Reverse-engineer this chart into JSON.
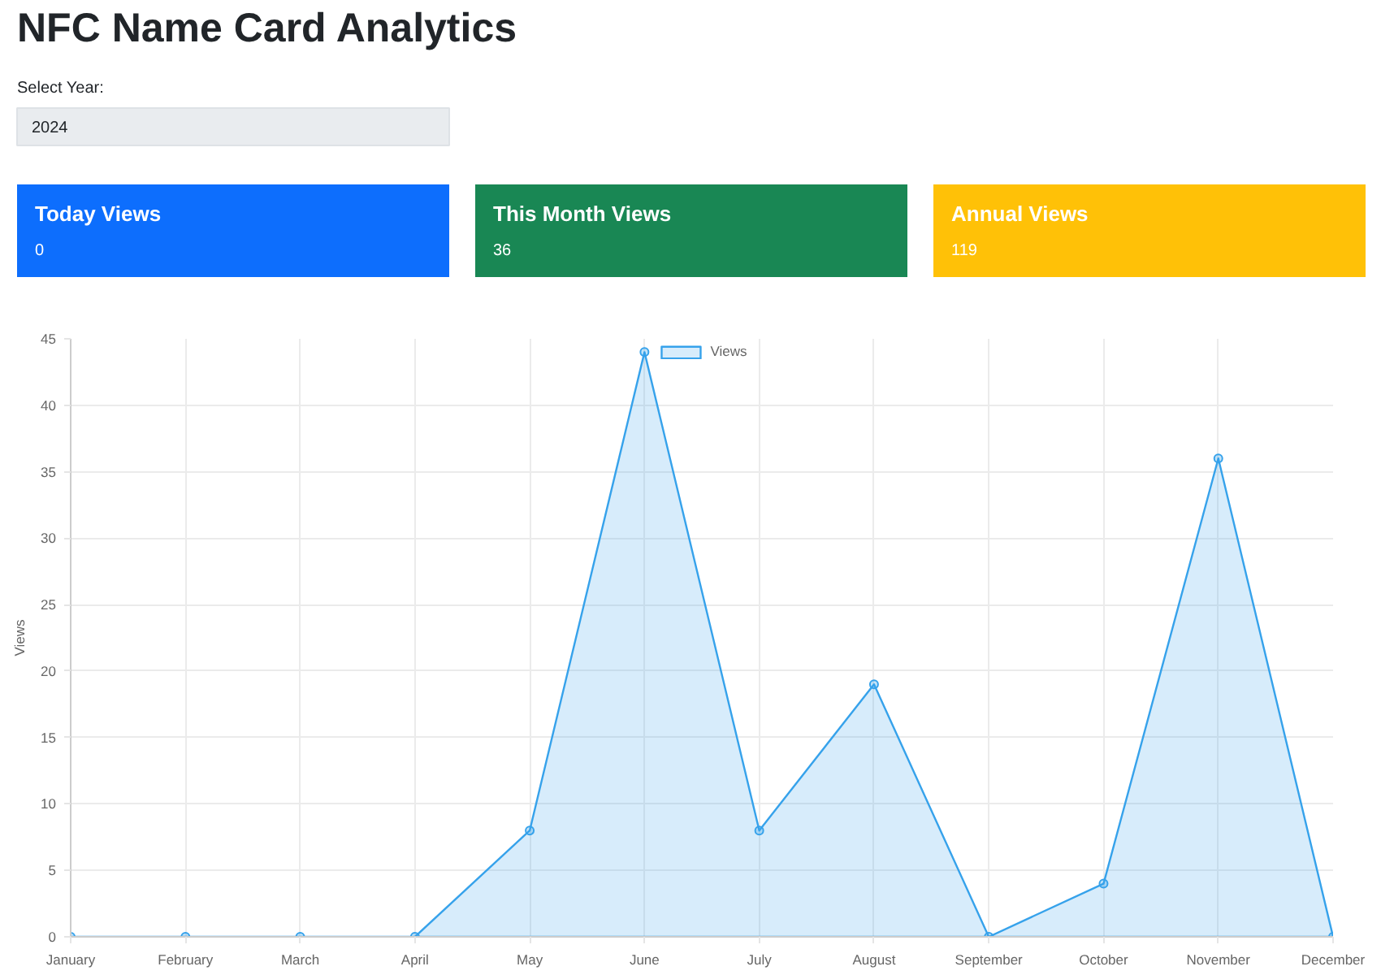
{
  "chart_data": [
    {
      "type": "other",
      "title": "NFC Name Card Analytics",
      "annotations": [
        "Select Year:",
        "2024"
      ],
      "categories": [
        "Today Views",
        "This Month Views",
        "Annual Views"
      ],
      "values": [
        0,
        36,
        119
      ],
      "colors": [
        "#0d6efd",
        "#198754",
        "#ffc107"
      ],
      "data_labels": true
    },
    {
      "type": "area",
      "categories": [
        "January",
        "February",
        "March",
        "April",
        "May",
        "June",
        "July",
        "August",
        "September",
        "October",
        "November",
        "December"
      ],
      "series": [
        {
          "name": "Views",
          "color": "#36a2eb",
          "values": [
            0,
            0,
            0,
            0,
            8,
            44,
            8,
            19,
            0,
            4,
            36,
            0
          ]
        }
      ],
      "ylabel": "Views",
      "ylim": [
        0,
        45
      ],
      "yticks": [
        0,
        5,
        10,
        15,
        20,
        25,
        30,
        35,
        40,
        45
      ],
      "grid": true,
      "legend": "top",
      "marker": "circle"
    }
  ]
}
